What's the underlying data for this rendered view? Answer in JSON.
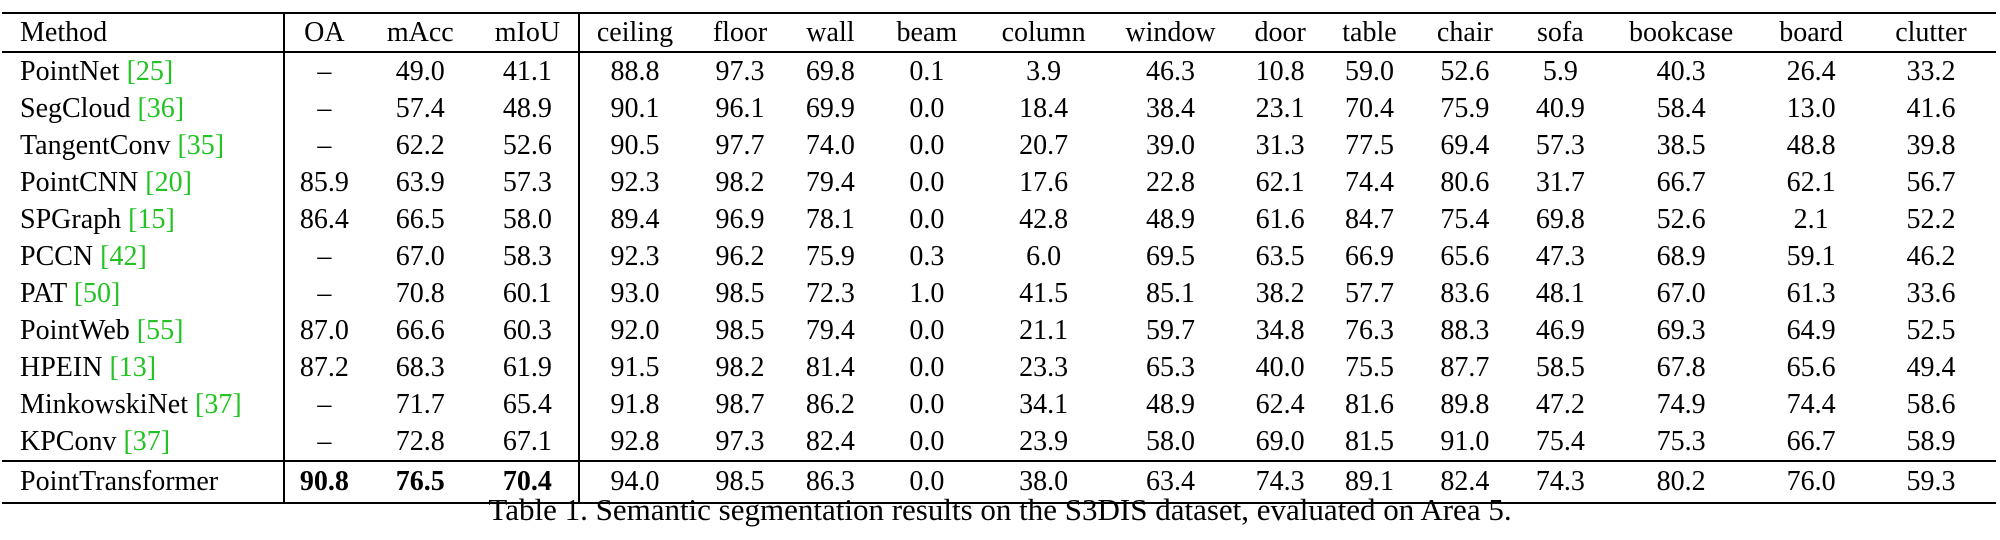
{
  "table": {
    "headers": [
      "Method",
      "OA",
      "mAcc",
      "mIoU",
      "ceiling",
      "floor",
      "wall",
      "beam",
      "column",
      "window",
      "door",
      "table",
      "chair",
      "sofa",
      "bookcase",
      "board",
      "clutter"
    ],
    "rows": [
      {
        "method": "PointNet",
        "ref": "[25]",
        "values": [
          "–",
          "49.0",
          "41.1",
          "88.8",
          "97.3",
          "69.8",
          "0.1",
          "3.9",
          "46.3",
          "10.8",
          "59.0",
          "52.6",
          "5.9",
          "40.3",
          "26.4",
          "33.2"
        ]
      },
      {
        "method": "SegCloud",
        "ref": "[36]",
        "values": [
          "–",
          "57.4",
          "48.9",
          "90.1",
          "96.1",
          "69.9",
          "0.0",
          "18.4",
          "38.4",
          "23.1",
          "70.4",
          "75.9",
          "40.9",
          "58.4",
          "13.0",
          "41.6"
        ]
      },
      {
        "method": "TangentConv",
        "ref": "[35]",
        "values": [
          "–",
          "62.2",
          "52.6",
          "90.5",
          "97.7",
          "74.0",
          "0.0",
          "20.7",
          "39.0",
          "31.3",
          "77.5",
          "69.4",
          "57.3",
          "38.5",
          "48.8",
          "39.8"
        ]
      },
      {
        "method": "PointCNN",
        "ref": "[20]",
        "values": [
          "85.9",
          "63.9",
          "57.3",
          "92.3",
          "98.2",
          "79.4",
          "0.0",
          "17.6",
          "22.8",
          "62.1",
          "74.4",
          "80.6",
          "31.7",
          "66.7",
          "62.1",
          "56.7"
        ]
      },
      {
        "method": "SPGraph",
        "ref": "[15]",
        "values": [
          "86.4",
          "66.5",
          "58.0",
          "89.4",
          "96.9",
          "78.1",
          "0.0",
          "42.8",
          "48.9",
          "61.6",
          "84.7",
          "75.4",
          "69.8",
          "52.6",
          "2.1",
          "52.2"
        ]
      },
      {
        "method": "PCCN",
        "ref": "[42]",
        "values": [
          "–",
          "67.0",
          "58.3",
          "92.3",
          "96.2",
          "75.9",
          "0.3",
          "6.0",
          "69.5",
          "63.5",
          "66.9",
          "65.6",
          "47.3",
          "68.9",
          "59.1",
          "46.2"
        ]
      },
      {
        "method": "PAT",
        "ref": "[50]",
        "values": [
          "–",
          "70.8",
          "60.1",
          "93.0",
          "98.5",
          "72.3",
          "1.0",
          "41.5",
          "85.1",
          "38.2",
          "57.7",
          "83.6",
          "48.1",
          "67.0",
          "61.3",
          "33.6"
        ]
      },
      {
        "method": "PointWeb",
        "ref": "[55]",
        "values": [
          "87.0",
          "66.6",
          "60.3",
          "92.0",
          "98.5",
          "79.4",
          "0.0",
          "21.1",
          "59.7",
          "34.8",
          "76.3",
          "88.3",
          "46.9",
          "69.3",
          "64.9",
          "52.5"
        ]
      },
      {
        "method": "HPEIN",
        "ref": "[13]",
        "values": [
          "87.2",
          "68.3",
          "61.9",
          "91.5",
          "98.2",
          "81.4",
          "0.0",
          "23.3",
          "65.3",
          "40.0",
          "75.5",
          "87.7",
          "58.5",
          "67.8",
          "65.6",
          "49.4"
        ]
      },
      {
        "method": "MinkowskiNet",
        "ref": "[37]",
        "values": [
          "–",
          "71.7",
          "65.4",
          "91.8",
          "98.7",
          "86.2",
          "0.0",
          "34.1",
          "48.9",
          "62.4",
          "81.6",
          "89.8",
          "47.2",
          "74.9",
          "74.4",
          "58.6"
        ]
      },
      {
        "method": "KPConv",
        "ref": "[37]",
        "values": [
          "–",
          "72.8",
          "67.1",
          "92.8",
          "97.3",
          "82.4",
          "0.0",
          "23.9",
          "58.0",
          "69.0",
          "81.5",
          "91.0",
          "75.4",
          "75.3",
          "66.7",
          "58.9"
        ]
      }
    ],
    "last_row": {
      "method": "PointTransformer",
      "values": [
        "90.8",
        "76.5",
        "70.4",
        "94.0",
        "98.5",
        "86.3",
        "0.0",
        "38.0",
        "63.4",
        "74.3",
        "89.1",
        "82.4",
        "74.3",
        "80.2",
        "76.0",
        "59.3"
      ]
    }
  },
  "caption": "Table 1. Semantic segmentation results on the S3DIS dataset, evaluated on Area 5.",
  "colors": {
    "ref_link": "#22c322",
    "text": "#000000"
  }
}
